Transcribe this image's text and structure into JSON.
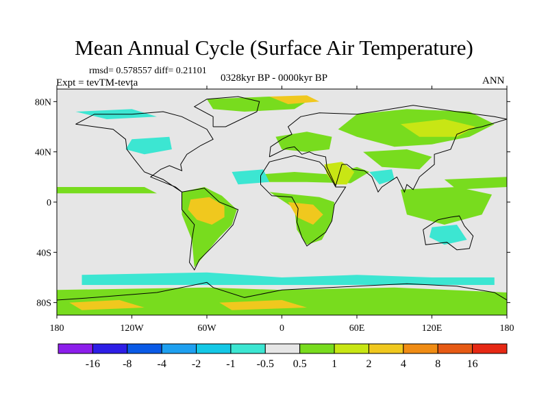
{
  "title": "Mean Annual Cycle (Surface Air Temperature)",
  "stats": "rmsd= 0.578557 diff= 0.21101",
  "period": "0328kyr BP - 0000kyr BP",
  "experiment": "Expt = tevTM-tevta",
  "season": "ANN",
  "axes": {
    "lat_ticks": [
      {
        "lat": 80,
        "label": "80N"
      },
      {
        "lat": 40,
        "label": "40N"
      },
      {
        "lat": 0,
        "label": "0"
      },
      {
        "lat": -40,
        "label": "40S"
      },
      {
        "lat": -80,
        "label": "80S"
      }
    ],
    "lon_ticks": [
      {
        "lon": -180,
        "label": "180"
      },
      {
        "lon": -120,
        "label": "120W"
      },
      {
        "lon": -60,
        "label": "60W"
      },
      {
        "lon": 0,
        "label": "0"
      },
      {
        "lon": 60,
        "label": "60E"
      },
      {
        "lon": 120,
        "label": "120E"
      },
      {
        "lon": 180,
        "label": "180"
      }
    ],
    "lon_range": [
      -180,
      180
    ],
    "lat_range": [
      -90,
      90
    ]
  },
  "colorbar": {
    "colors": [
      "#8c1eeb",
      "#2d1ee6",
      "#0a5ae6",
      "#1ea0f0",
      "#14c8e6",
      "#3ce6d2",
      "#e6e6e6",
      "#78dc1e",
      "#c8e614",
      "#f0c81e",
      "#f08c14",
      "#e65a14",
      "#e62814"
    ],
    "labels": [
      "-16",
      "-8",
      "-4",
      "-2",
      "-1",
      "-0.5",
      "0.5",
      "1",
      "2",
      "4",
      "8",
      "16"
    ]
  },
  "regions": [
    {
      "name": "amazon-warm",
      "color": "#78dc1e",
      "pts": [
        [
          -80,
          8
        ],
        [
          -62,
          12
        ],
        [
          -48,
          5
        ],
        [
          -36,
          -6
        ],
        [
          -40,
          -18
        ],
        [
          -50,
          -28
        ],
        [
          -60,
          -40
        ],
        [
          -70,
          -52
        ],
        [
          -72,
          -30
        ],
        [
          -80,
          -10
        ]
      ]
    },
    {
      "name": "amazon-core",
      "color": "#f0c81e",
      "pts": [
        [
          -73,
          2
        ],
        [
          -58,
          4
        ],
        [
          -46,
          -3
        ],
        [
          -46,
          -12
        ],
        [
          -56,
          -18
        ],
        [
          -68,
          -14
        ],
        [
          -75,
          -6
        ]
      ]
    },
    {
      "name": "africa-warm",
      "color": "#78dc1e",
      "pts": [
        [
          -10,
          8
        ],
        [
          10,
          6
        ],
        [
          30,
          4
        ],
        [
          42,
          0
        ],
        [
          40,
          -15
        ],
        [
          32,
          -30
        ],
        [
          20,
          -34
        ],
        [
          12,
          -22
        ],
        [
          10,
          -5
        ]
      ]
    },
    {
      "name": "africa-core",
      "color": "#f0c81e",
      "pts": [
        [
          5,
          0
        ],
        [
          25,
          -2
        ],
        [
          33,
          -10
        ],
        [
          25,
          -18
        ],
        [
          12,
          -12
        ]
      ]
    },
    {
      "name": "sahara-band",
      "color": "#78dc1e",
      "pts": [
        [
          -18,
          22
        ],
        [
          10,
          24
        ],
        [
          40,
          22
        ],
        [
          60,
          28
        ],
        [
          70,
          24
        ],
        [
          55,
          15
        ],
        [
          20,
          16
        ],
        [
          -10,
          16
        ]
      ]
    },
    {
      "name": "arabia",
      "color": "#c8e614",
      "pts": [
        [
          34,
          30
        ],
        [
          48,
          32
        ],
        [
          58,
          24
        ],
        [
          52,
          14
        ],
        [
          42,
          14
        ],
        [
          36,
          22
        ]
      ]
    },
    {
      "name": "asia-north",
      "color": "#78dc1e",
      "pts": [
        [
          60,
          70
        ],
        [
          100,
          74
        ],
        [
          150,
          72
        ],
        [
          170,
          62
        ],
        [
          150,
          52
        ],
        [
          120,
          46
        ],
        [
          90,
          44
        ],
        [
          60,
          52
        ],
        [
          45,
          58
        ]
      ]
    },
    {
      "name": "asia-core",
      "color": "#c8e614",
      "pts": [
        [
          95,
          62
        ],
        [
          130,
          66
        ],
        [
          155,
          60
        ],
        [
          140,
          52
        ],
        [
          110,
          52
        ]
      ]
    },
    {
      "name": "europe",
      "color": "#78dc1e",
      "pts": [
        [
          -5,
          52
        ],
        [
          20,
          56
        ],
        [
          40,
          52
        ],
        [
          38,
          42
        ],
        [
          20,
          40
        ],
        [
          0,
          42
        ]
      ]
    },
    {
      "name": "tibet",
      "color": "#78dc1e",
      "pts": [
        [
          65,
          40
        ],
        [
          100,
          42
        ],
        [
          120,
          36
        ],
        [
          110,
          26
        ],
        [
          80,
          28
        ]
      ]
    },
    {
      "name": "s-asia-cool",
      "color": "#3ce6d2",
      "pts": [
        [
          70,
          24
        ],
        [
          88,
          26
        ],
        [
          90,
          18
        ],
        [
          78,
          14
        ]
      ]
    },
    {
      "name": "indonesia",
      "color": "#78dc1e",
      "pts": [
        [
          95,
          10
        ],
        [
          140,
          12
        ],
        [
          168,
          6
        ],
        [
          160,
          -10
        ],
        [
          130,
          -18
        ],
        [
          100,
          -10
        ]
      ]
    },
    {
      "name": "australia-cool",
      "color": "#3ce6d2",
      "pts": [
        [
          120,
          -20
        ],
        [
          140,
          -18
        ],
        [
          148,
          -30
        ],
        [
          130,
          -34
        ],
        [
          118,
          -28
        ]
      ]
    },
    {
      "name": "n-pacific-band",
      "color": "#78dc1e",
      "pts": [
        [
          -180,
          12
        ],
        [
          -110,
          12
        ],
        [
          -100,
          7
        ],
        [
          -180,
          7
        ]
      ]
    },
    {
      "name": "w-pacific-band",
      "color": "#78dc1e",
      "pts": [
        [
          130,
          18
        ],
        [
          180,
          20
        ],
        [
          180,
          12
        ],
        [
          140,
          10
        ]
      ]
    },
    {
      "name": "atlantic-cool",
      "color": "#3ce6d2",
      "pts": [
        [
          -40,
          24
        ],
        [
          -15,
          26
        ],
        [
          -10,
          16
        ],
        [
          -35,
          14
        ]
      ]
    },
    {
      "name": "n-america-cool",
      "color": "#3ce6d2",
      "pts": [
        [
          -120,
          50
        ],
        [
          -90,
          52
        ],
        [
          -88,
          42
        ],
        [
          -110,
          38
        ],
        [
          -125,
          42
        ]
      ]
    },
    {
      "name": "greenland-warm",
      "color": "#78dc1e",
      "pts": [
        [
          -60,
          82
        ],
        [
          -10,
          84
        ],
        [
          20,
          80
        ],
        [
          10,
          74
        ],
        [
          -30,
          72
        ],
        [
          -55,
          74
        ]
      ]
    },
    {
      "name": "arctic-hot",
      "color": "#f0c81e",
      "pts": [
        [
          -10,
          84
        ],
        [
          20,
          85
        ],
        [
          30,
          80
        ],
        [
          5,
          78
        ]
      ]
    },
    {
      "name": "arctic-cool-w",
      "color": "#3ce6d2",
      "pts": [
        [
          -165,
          72
        ],
        [
          -120,
          74
        ],
        [
          -100,
          68
        ],
        [
          -140,
          66
        ]
      ]
    },
    {
      "name": "southern-cool",
      "color": "#3ce6d2",
      "pts": [
        [
          -160,
          -58
        ],
        [
          -60,
          -56
        ],
        [
          0,
          -60
        ],
        [
          60,
          -58
        ],
        [
          120,
          -60
        ],
        [
          170,
          -60
        ],
        [
          170,
          -66
        ],
        [
          60,
          -66
        ],
        [
          -60,
          -66
        ],
        [
          -160,
          -66
        ]
      ]
    },
    {
      "name": "antarctic-warm",
      "color": "#78dc1e",
      "pts": [
        [
          -180,
          -70
        ],
        [
          -60,
          -68
        ],
        [
          0,
          -70
        ],
        [
          90,
          -68
        ],
        [
          180,
          -72
        ],
        [
          180,
          -90
        ],
        [
          -180,
          -90
        ]
      ]
    },
    {
      "name": "antarctic-hot",
      "color": "#f0c81e",
      "pts": [
        [
          -170,
          -80
        ],
        [
          -130,
          -78
        ],
        [
          -110,
          -84
        ],
        [
          -160,
          -86
        ]
      ]
    },
    {
      "name": "antarctic-hot-2",
      "color": "#f0c81e",
      "pts": [
        [
          -50,
          -80
        ],
        [
          0,
          -78
        ],
        [
          20,
          -84
        ],
        [
          -40,
          -86
        ]
      ]
    }
  ],
  "coastlines": [
    {
      "name": "north-america",
      "pts": [
        [
          -165,
          62
        ],
        [
          -150,
          70
        ],
        [
          -120,
          70
        ],
        [
          -95,
          72
        ],
        [
          -80,
          68
        ],
        [
          -60,
          58
        ],
        [
          -55,
          50
        ],
        [
          -65,
          45
        ],
        [
          -76,
          38
        ],
        [
          -81,
          30
        ],
        [
          -80,
          25
        ],
        [
          -90,
          29
        ],
        [
          -97,
          26
        ],
        [
          -105,
          20
        ],
        [
          -95,
          16
        ],
        [
          -85,
          12
        ],
        [
          -80,
          8
        ],
        [
          -95,
          18
        ],
        [
          -110,
          24
        ],
        [
          -118,
          34
        ],
        [
          -124,
          42
        ],
        [
          -125,
          50
        ],
        [
          -135,
          58
        ],
        [
          -150,
          60
        ],
        [
          -165,
          62
        ]
      ]
    },
    {
      "name": "south-america",
      "pts": [
        [
          -80,
          8
        ],
        [
          -62,
          11
        ],
        [
          -50,
          0
        ],
        [
          -35,
          -6
        ],
        [
          -39,
          -18
        ],
        [
          -48,
          -28
        ],
        [
          -58,
          -38
        ],
        [
          -66,
          -46
        ],
        [
          -70,
          -54
        ],
        [
          -74,
          -48
        ],
        [
          -72,
          -30
        ],
        [
          -70,
          -18
        ],
        [
          -80,
          -6
        ],
        [
          -80,
          8
        ]
      ]
    },
    {
      "name": "africa",
      "pts": [
        [
          -17,
          21
        ],
        [
          -10,
          32
        ],
        [
          10,
          37
        ],
        [
          30,
          32
        ],
        [
          34,
          28
        ],
        [
          43,
          12
        ],
        [
          51,
          12
        ],
        [
          42,
          -2
        ],
        [
          40,
          -15
        ],
        [
          35,
          -24
        ],
        [
          20,
          -35
        ],
        [
          16,
          -28
        ],
        [
          12,
          -16
        ],
        [
          13,
          -5
        ],
        [
          8,
          4
        ],
        [
          -8,
          5
        ],
        [
          -17,
          14
        ],
        [
          -17,
          21
        ]
      ]
    },
    {
      "name": "eurasia",
      "pts": [
        [
          -10,
          36
        ],
        [
          -9,
          44
        ],
        [
          0,
          50
        ],
        [
          8,
          54
        ],
        [
          5,
          60
        ],
        [
          15,
          68
        ],
        [
          30,
          71
        ],
        [
          60,
          70
        ],
        [
          80,
          73
        ],
        [
          105,
          77
        ],
        [
          140,
          72
        ],
        [
          170,
          68
        ],
        [
          180,
          66
        ],
        [
          160,
          60
        ],
        [
          150,
          58
        ],
        [
          140,
          54
        ],
        [
          135,
          42
        ],
        [
          122,
          38
        ],
        [
          122,
          30
        ],
        [
          110,
          20
        ],
        [
          105,
          10
        ],
        [
          100,
          14
        ],
        [
          98,
          8
        ],
        [
          92,
          20
        ],
        [
          80,
          12
        ],
        [
          77,
          8
        ],
        [
          72,
          20
        ],
        [
          66,
          25
        ],
        [
          57,
          26
        ],
        [
          52,
          30
        ],
        [
          48,
          30
        ],
        [
          43,
          13
        ],
        [
          36,
          28
        ],
        [
          35,
          36
        ],
        [
          26,
          38
        ],
        [
          22,
          40
        ],
        [
          16,
          38
        ],
        [
          10,
          44
        ],
        [
          4,
          43
        ],
        [
          -10,
          36
        ]
      ]
    },
    {
      "name": "greenland",
      "pts": [
        [
          -55,
          60
        ],
        [
          -45,
          60
        ],
        [
          -20,
          72
        ],
        [
          -18,
          80
        ],
        [
          -35,
          84
        ],
        [
          -60,
          82
        ],
        [
          -70,
          76
        ],
        [
          -55,
          68
        ],
        [
          -55,
          60
        ]
      ]
    },
    {
      "name": "australia",
      "pts": [
        [
          113,
          -22
        ],
        [
          125,
          -14
        ],
        [
          135,
          -12
        ],
        [
          142,
          -11
        ],
        [
          146,
          -19
        ],
        [
          153,
          -27
        ],
        [
          150,
          -37
        ],
        [
          140,
          -38
        ],
        [
          132,
          -32
        ],
        [
          115,
          -34
        ],
        [
          113,
          -22
        ]
      ]
    },
    {
      "name": "antarctica",
      "pts": [
        [
          -180,
          -78
        ],
        [
          -150,
          -76
        ],
        [
          -100,
          -72
        ],
        [
          -60,
          -64
        ],
        [
          -55,
          -68
        ],
        [
          -30,
          -76
        ],
        [
          0,
          -70
        ],
        [
          60,
          -67
        ],
        [
          100,
          -65
        ],
        [
          140,
          -67
        ],
        [
          170,
          -72
        ],
        [
          180,
          -78
        ]
      ]
    }
  ]
}
